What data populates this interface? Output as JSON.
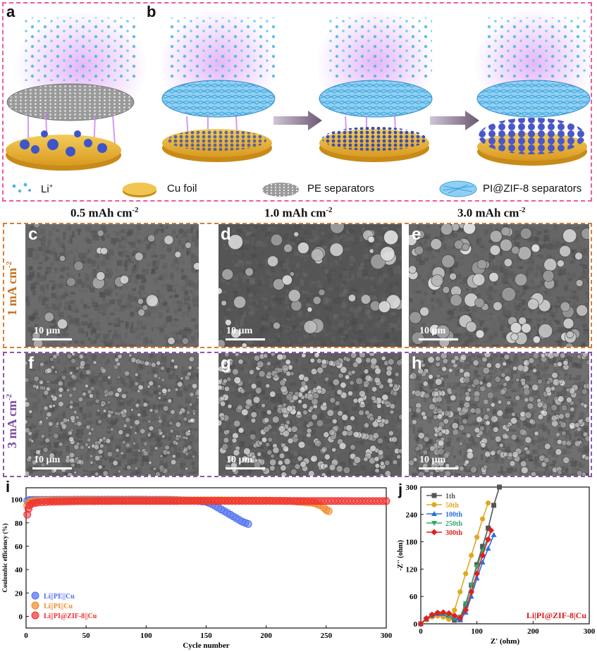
{
  "panels": {
    "a": "a",
    "b": "b",
    "c": "c",
    "d": "d",
    "e": "e",
    "f": "f",
    "g": "g",
    "h": "h",
    "i": "i",
    "j": "j"
  },
  "legend": {
    "li": "Li",
    "li_sup": "+",
    "cu": "Cu foil",
    "pe": "PE separators",
    "pi": "PI@ZIF-8 separators"
  },
  "columns": {
    "c1": "0.5 mAh cm",
    "c2": "1.0 mAh cm",
    "c3": "3.0 mAh cm",
    "exp": "-2"
  },
  "rows": {
    "r1": "1 mA cm",
    "r2": "3 mA cm",
    "exp": "-2"
  },
  "scale_bar": "10 µm",
  "colors": {
    "orange_border": "#e07a2a",
    "purple_border": "#8a55b5",
    "pink_border": "#ee5aa0",
    "r1_text": "#c8731f",
    "r2_text": "#7a4aa8"
  },
  "chart_data": [
    {
      "type": "scatter",
      "panel": "i",
      "xlabel": "Cycle number",
      "ylabel": "Coulombic efficiency (%)",
      "xlim": [
        0,
        300
      ],
      "ylim": [
        -10,
        110
      ],
      "xticks": [
        0,
        50,
        100,
        150,
        200,
        250,
        300
      ],
      "yticks": [
        0,
        20,
        40,
        60,
        80,
        100
      ],
      "legend_position": "bottom-left",
      "series": [
        {
          "name": "Li||PE||Cu",
          "color": "#4f6ff0",
          "x": [
            1,
            3,
            5,
            10,
            20,
            40,
            60,
            80,
            100,
            120,
            140,
            150,
            155,
            160,
            165,
            170,
            175,
            180,
            185
          ],
          "y": [
            99,
            99.5,
            99.6,
            99.7,
            99.7,
            99.8,
            99.8,
            99.8,
            99.8,
            99.7,
            99,
            98,
            96,
            93,
            90,
            87,
            84,
            81,
            79
          ]
        },
        {
          "name": "Li||PI||Cu",
          "color": "#f08a2a",
          "x": [
            1,
            3,
            5,
            10,
            20,
            40,
            60,
            80,
            100,
            120,
            140,
            160,
            180,
            200,
            220,
            240,
            245,
            248,
            250,
            252
          ],
          "y": [
            95,
            98,
            98.5,
            99,
            99.2,
            99.3,
            99.3,
            99.3,
            99.3,
            99.3,
            99.2,
            99.2,
            99.1,
            99.0,
            98.8,
            97,
            95,
            93,
            91,
            90
          ]
        },
        {
          "name": "Li||PI@ZIF-8||Cu",
          "color": "#f03030",
          "x": [
            1,
            2,
            3,
            5,
            10,
            20,
            40,
            60,
            80,
            100,
            120,
            140,
            160,
            180,
            200,
            220,
            240,
            260,
            280,
            300
          ],
          "y": [
            87,
            92,
            95,
            96.5,
            97.5,
            98,
            98.5,
            98.6,
            98.7,
            98.7,
            98.7,
            98.8,
            98.8,
            98.8,
            98.8,
            98.7,
            98.7,
            98.7,
            98.6,
            98.6
          ]
        }
      ]
    },
    {
      "type": "line",
      "panel": "j",
      "xlabel": "Z' (ohm)",
      "ylabel": "-Z'' (ohm)",
      "xlim": [
        0,
        300
      ],
      "ylim": [
        0,
        300
      ],
      "xticks": [
        0,
        100,
        200,
        300
      ],
      "yticks": [
        0,
        60,
        120,
        180,
        240,
        300
      ],
      "legend_position": "top-left",
      "annotation": "Li|PI@ZIF-8|Cu",
      "series": [
        {
          "name": "1th",
          "color": "#555555",
          "x": [
            0,
            10,
            20,
            30,
            40,
            50,
            60,
            70,
            80,
            90,
            100,
            110,
            120,
            130,
            140
          ],
          "y": [
            0,
            10,
            17,
            20,
            19,
            14,
            8,
            10,
            40,
            85,
            130,
            170,
            210,
            260,
            300
          ]
        },
        {
          "name": "50th",
          "color": "#e0a820",
          "x": [
            0,
            10,
            20,
            30,
            40,
            50,
            60,
            70,
            80,
            90,
            100,
            110,
            120
          ],
          "y": [
            0,
            9,
            15,
            17,
            15,
            10,
            30,
            70,
            110,
            150,
            190,
            230,
            265
          ]
        },
        {
          "name": "100th",
          "color": "#2a6fe0",
          "x": [
            0,
            10,
            20,
            30,
            40,
            50,
            60,
            70,
            80,
            90,
            100,
            110,
            120,
            130
          ],
          "y": [
            0,
            10,
            18,
            22,
            22,
            18,
            12,
            8,
            25,
            60,
            100,
            135,
            165,
            195
          ]
        },
        {
          "name": "250th",
          "color": "#30a870",
          "x": [
            0,
            10,
            20,
            30,
            40,
            50,
            60,
            70,
            80,
            90,
            100,
            110,
            118
          ],
          "y": [
            0,
            11,
            19,
            23,
            22,
            17,
            12,
            15,
            45,
            85,
            125,
            160,
            185
          ]
        },
        {
          "name": "300th",
          "color": "#e02020",
          "x": [
            0,
            10,
            20,
            30,
            40,
            50,
            60,
            70,
            80,
            90,
            100,
            110,
            120,
            125
          ],
          "y": [
            0,
            12,
            20,
            24,
            25,
            23,
            18,
            13,
            30,
            70,
            110,
            150,
            185,
            205
          ]
        }
      ]
    }
  ]
}
